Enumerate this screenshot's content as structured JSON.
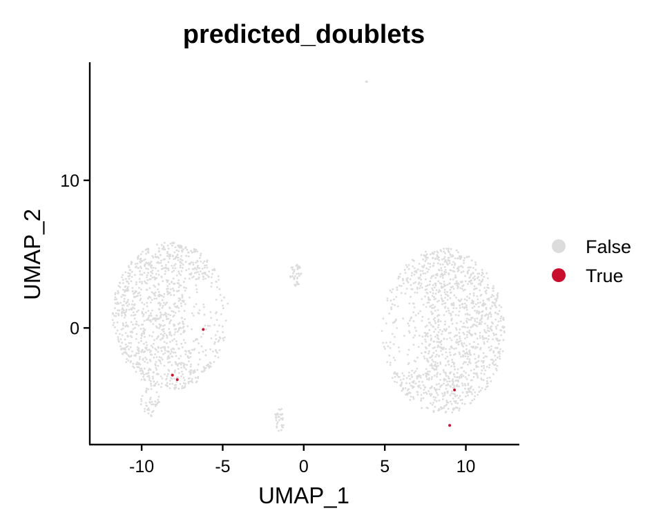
{
  "chart_data": {
    "type": "scatter",
    "title": "predicted_doublets",
    "xlabel": "UMAP_1",
    "ylabel": "UMAP_2",
    "xlim": [
      -13.2,
      13.3
    ],
    "ylim": [
      -7.9,
      18.0
    ],
    "x_ticks": [
      {
        "value": -10,
        "label": "-10"
      },
      {
        "value": -5,
        "label": "-5"
      },
      {
        "value": 0,
        "label": "0"
      },
      {
        "value": 5,
        "label": "5"
      },
      {
        "value": 10,
        "label": "10"
      }
    ],
    "y_ticks": [
      {
        "value": 0,
        "label": "0"
      },
      {
        "value": 10,
        "label": "10"
      }
    ],
    "legend_position": "right",
    "grid": false,
    "series": [
      {
        "name": "False",
        "color": "#DCDCDC",
        "clusters": [
          {
            "cx": -8.2,
            "cy": 0.8,
            "rx": 3.6,
            "ry": 5.0,
            "n": 1100,
            "shape": "crescent"
          },
          {
            "cx": 8.6,
            "cy": -0.2,
            "rx": 3.8,
            "ry": 5.6,
            "n": 1300,
            "shape": "crescent-mirror"
          },
          {
            "cx": -0.5,
            "cy": 3.6,
            "rx": 0.35,
            "ry": 0.9,
            "n": 40,
            "shape": "blob"
          },
          {
            "cx": -1.5,
            "cy": -6.2,
            "rx": 0.3,
            "ry": 0.8,
            "n": 30,
            "shape": "blob"
          },
          {
            "cx": 3.9,
            "cy": 16.7,
            "rx": 0.08,
            "ry": 0.08,
            "n": 4,
            "shape": "blob"
          },
          {
            "cx": -9.5,
            "cy": -5.0,
            "rx": 0.6,
            "ry": 1.0,
            "n": 40,
            "shape": "blob"
          }
        ]
      },
      {
        "name": "True",
        "color": "#C8102E",
        "points": [
          {
            "x": -6.2,
            "y": -0.1
          },
          {
            "x": -8.1,
            "y": -3.2
          },
          {
            "x": -7.8,
            "y": -3.5
          },
          {
            "x": 9.3,
            "y": -4.2
          },
          {
            "x": 9.0,
            "y": -6.6
          }
        ]
      }
    ]
  }
}
